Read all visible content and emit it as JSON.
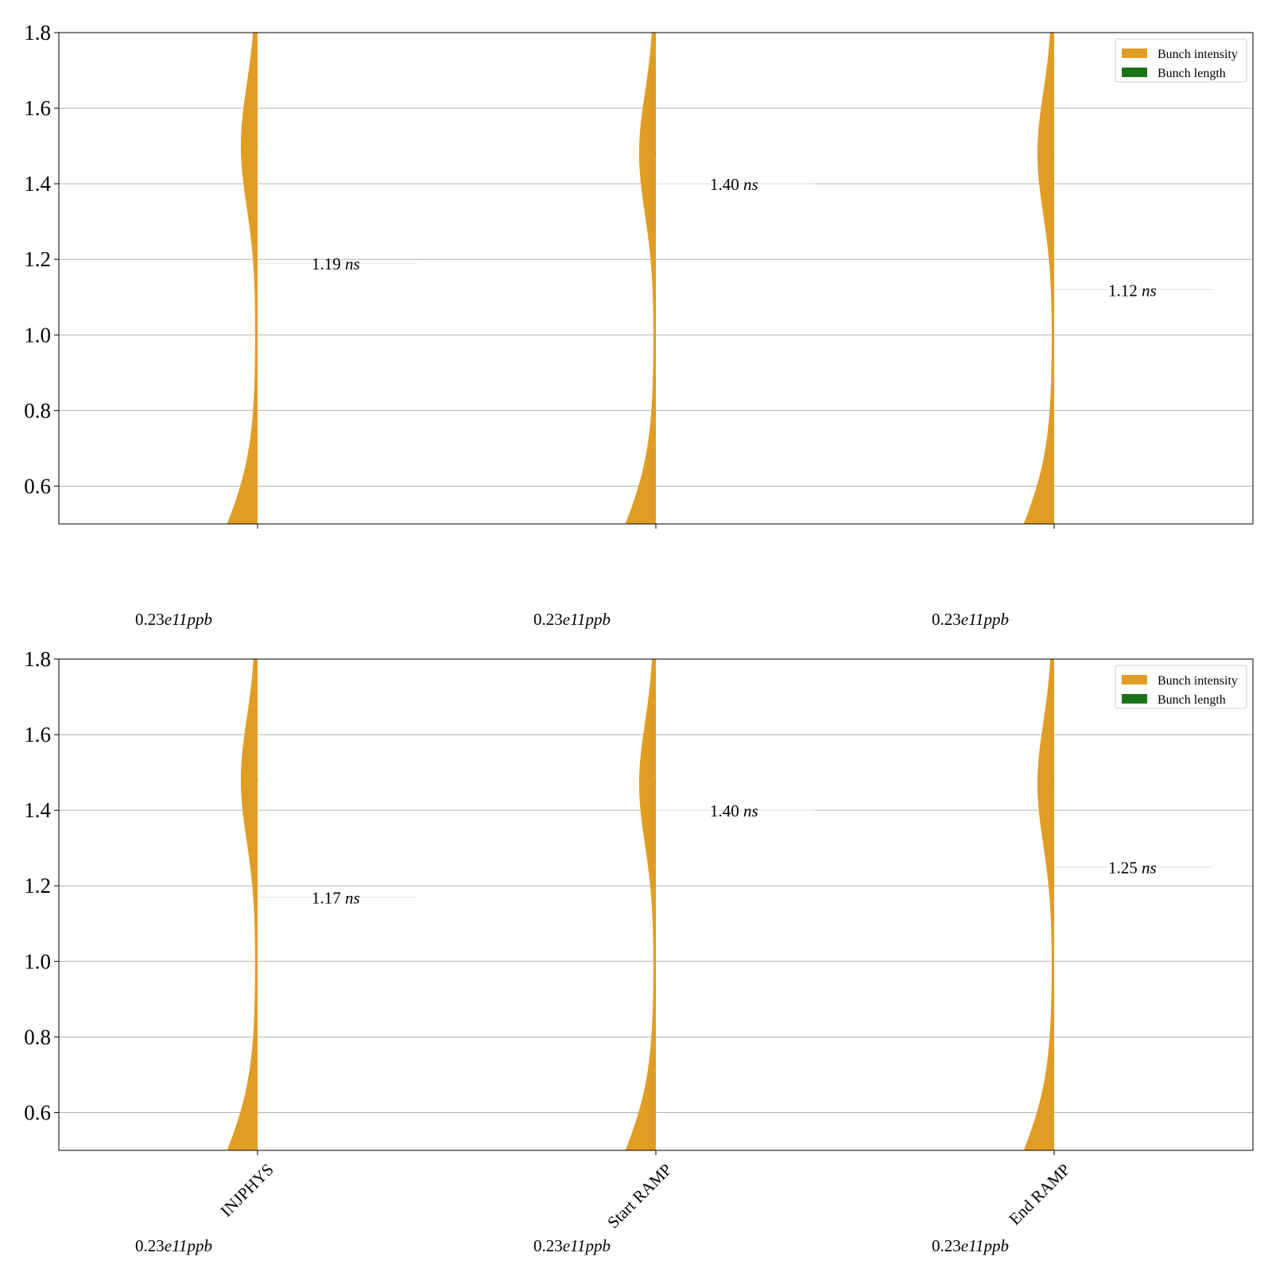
{
  "colors": {
    "bunch_intensity": "#e09d24",
    "bunch_length": "#1a7219",
    "grid": "#b0b0b0",
    "axis": "#000000",
    "guide": "#e6e6e6"
  },
  "chart_data": [
    {
      "type": "violin",
      "title": "",
      "xlabel": "",
      "ylabel": "",
      "ylim": [
        0.5,
        1.8
      ],
      "yticks": [
        "0.6",
        "0.8",
        "1.0",
        "1.2",
        "1.4",
        "1.6",
        "1.8"
      ],
      "grid": true,
      "legend_position": "top-right",
      "legend": [
        {
          "label": "Bunch intensity",
          "color_key": "bunch_intensity"
        },
        {
          "label": "Bunch length",
          "color_key": "bunch_length"
        }
      ],
      "categories": [
        "INJPHYS",
        "Start RAMP",
        "End RAMP"
      ],
      "show_category_labels": false,
      "series": [
        {
          "name": "Bunch intensity",
          "side": "left",
          "median": 1.5,
          "mean_bunch_length": 1.19,
          "value_label": "1.19",
          "value_unit": "ns",
          "intensity_value": "0.23",
          "intensity_exp": "e11",
          "intensity_unit": "ppb"
        },
        {
          "name": "Bunch intensity",
          "side": "left",
          "median": 1.48,
          "mean_bunch_length": 1.4,
          "value_label": "1.40",
          "value_unit": "ns",
          "intensity_value": "0.23",
          "intensity_exp": "e11",
          "intensity_unit": "ppb"
        },
        {
          "name": "Bunch intensity",
          "side": "left",
          "median": 1.48,
          "mean_bunch_length": 1.12,
          "value_label": "1.12",
          "value_unit": "ns",
          "intensity_value": "0.23",
          "intensity_exp": "e11",
          "intensity_unit": "ppb"
        }
      ]
    },
    {
      "type": "violin",
      "title": "",
      "xlabel": "",
      "ylabel": "",
      "ylim": [
        0.5,
        1.8
      ],
      "yticks": [
        "0.6",
        "0.8",
        "1.0",
        "1.2",
        "1.4",
        "1.6",
        "1.8"
      ],
      "grid": true,
      "legend_position": "top-right",
      "legend": [
        {
          "label": "Bunch intensity",
          "color_key": "bunch_intensity"
        },
        {
          "label": "Bunch length",
          "color_key": "bunch_length"
        }
      ],
      "categories": [
        "INJPHYS",
        "Start RAMP",
        "End RAMP"
      ],
      "show_category_labels": true,
      "series": [
        {
          "name": "Bunch intensity",
          "side": "left",
          "median": 1.48,
          "mean_bunch_length": 1.17,
          "value_label": "1.17",
          "value_unit": "ns",
          "intensity_value": "0.23",
          "intensity_exp": "e11",
          "intensity_unit": "ppb"
        },
        {
          "name": "Bunch intensity",
          "side": "left",
          "median": 1.47,
          "mean_bunch_length": 1.4,
          "value_label": "1.40",
          "value_unit": "ns",
          "intensity_value": "0.23",
          "intensity_exp": "e11",
          "intensity_unit": "ppb"
        },
        {
          "name": "Bunch intensity",
          "side": "left",
          "median": 1.47,
          "mean_bunch_length": 1.25,
          "value_label": "1.25",
          "value_unit": "ns",
          "intensity_value": "0.23",
          "intensity_exp": "e11",
          "intensity_unit": "ppb"
        }
      ]
    }
  ]
}
